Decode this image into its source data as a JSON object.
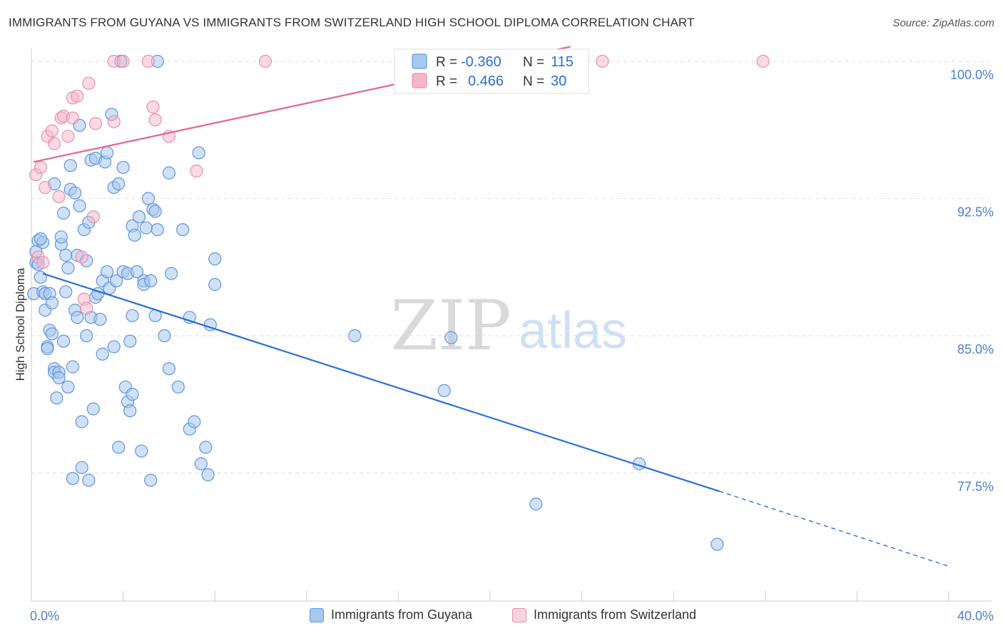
{
  "title": "IMMIGRANTS FROM GUYANA VS IMMIGRANTS FROM SWITZERLAND HIGH SCHOOL DIPLOMA CORRELATION CHART",
  "source": "Source: ZipAtlas.com",
  "watermark": {
    "zip": "ZIP",
    "atlas": "atlas"
  },
  "colors": {
    "guyana_fill": "#a9c8ef",
    "guyana_stroke": "#5f95db",
    "guyana_line": "#2c6fd6",
    "swiss_fill": "#f6b6c9",
    "swiss_stroke": "#ea8fac",
    "swiss_line": "#e4648c",
    "axis_text": "#4a7fd0",
    "grid": "#dddddd"
  },
  "legend_top": [
    {
      "r_label": "R =",
      "r_value": "-0.360",
      "n_label": "N =",
      "n_value": "115"
    },
    {
      "r_label": "R =",
      "r_value": "0.466",
      "n_label": "N =",
      "n_value": "30"
    }
  ],
  "legend_bottom": [
    "Immigrants from Guyana",
    "Immigrants from Switzerland"
  ],
  "chart_data": {
    "type": "scatter",
    "xlabel": "",
    "ylabel": "High School Diploma",
    "xlim": [
      0,
      40
    ],
    "ylim": [
      70.5,
      100.7
    ],
    "x_tick_labels": [
      {
        "value": 0,
        "label": "0.0%"
      },
      {
        "value": 40,
        "label": "40.0%"
      }
    ],
    "y_tick_labels": [
      {
        "value": 100,
        "label": "100.0%"
      },
      {
        "value": 92.5,
        "label": "92.5%"
      },
      {
        "value": 85,
        "label": "85.0%"
      },
      {
        "value": 77.5,
        "label": "77.5%"
      }
    ],
    "grid": "horizontal dashed",
    "series": [
      {
        "name": "Immigrants from Guyana",
        "regression": {
          "x0": 0.5,
          "y0": 88.4,
          "x1": 30.0,
          "y1": 76.5,
          "x_dash_end": 40.0,
          "y_dash_end": 72.4
        },
        "points": [
          [
            0.1,
            87.3
          ],
          [
            0.2,
            89.0
          ],
          [
            0.2,
            89.6
          ],
          [
            0.3,
            90.2
          ],
          [
            0.3,
            88.9
          ],
          [
            0.4,
            88.2
          ],
          [
            0.5,
            90.1
          ],
          [
            0.5,
            87.4
          ],
          [
            0.6,
            86.4
          ],
          [
            0.6,
            87.3
          ],
          [
            0.7,
            84.4
          ],
          [
            0.7,
            84.3
          ],
          [
            0.8,
            85.3
          ],
          [
            0.8,
            87.3
          ],
          [
            0.9,
            85.1
          ],
          [
            0.9,
            86.8
          ],
          [
            1.0,
            83.2
          ],
          [
            1.0,
            83.0
          ],
          [
            1.1,
            81.6
          ],
          [
            1.2,
            83.0
          ],
          [
            1.2,
            82.7
          ],
          [
            1.3,
            90.0
          ],
          [
            1.3,
            90.4
          ],
          [
            1.4,
            91.7
          ],
          [
            1.4,
            84.7
          ],
          [
            1.5,
            89.4
          ],
          [
            1.5,
            87.4
          ],
          [
            1.6,
            82.2
          ],
          [
            1.6,
            88.7
          ],
          [
            1.7,
            93.0
          ],
          [
            1.7,
            94.3
          ],
          [
            1.8,
            83.3
          ],
          [
            1.8,
            77.2
          ],
          [
            1.9,
            92.8
          ],
          [
            1.9,
            86.4
          ],
          [
            2.0,
            89.4
          ],
          [
            2.0,
            86.0
          ],
          [
            2.1,
            92.1
          ],
          [
            2.1,
            96.5
          ],
          [
            2.2,
            77.8
          ],
          [
            2.2,
            80.3
          ],
          [
            2.3,
            90.8
          ],
          [
            2.4,
            85.0
          ],
          [
            2.4,
            89.1
          ],
          [
            2.5,
            91.2
          ],
          [
            2.5,
            77.1
          ],
          [
            2.6,
            94.6
          ],
          [
            2.6,
            86.0
          ],
          [
            2.7,
            81.0
          ],
          [
            2.8,
            94.7
          ],
          [
            2.8,
            87.1
          ],
          [
            2.9,
            87.3
          ],
          [
            3.0,
            85.9
          ],
          [
            3.1,
            84.0
          ],
          [
            3.1,
            88.0
          ],
          [
            3.2,
            94.5
          ],
          [
            3.3,
            95.0
          ],
          [
            3.3,
            88.5
          ],
          [
            3.4,
            87.6
          ],
          [
            3.5,
            97.1
          ],
          [
            3.6,
            93.1
          ],
          [
            3.6,
            84.4
          ],
          [
            3.7,
            88.0
          ],
          [
            3.8,
            78.9
          ],
          [
            3.8,
            93.3
          ],
          [
            3.9,
            100.0
          ],
          [
            4.0,
            94.2
          ],
          [
            4.0,
            88.5
          ],
          [
            4.1,
            82.2
          ],
          [
            4.2,
            81.4
          ],
          [
            4.2,
            88.4
          ],
          [
            4.3,
            80.9
          ],
          [
            4.3,
            84.7
          ],
          [
            4.4,
            86.1
          ],
          [
            4.4,
            91.0
          ],
          [
            4.4,
            81.8
          ],
          [
            4.5,
            90.5
          ],
          [
            4.6,
            88.5
          ],
          [
            4.7,
            91.5
          ],
          [
            4.8,
            78.7
          ],
          [
            4.9,
            88.0
          ],
          [
            4.9,
            87.8
          ],
          [
            5.0,
            90.9
          ],
          [
            5.1,
            92.5
          ],
          [
            5.2,
            88.0
          ],
          [
            5.2,
            77.1
          ],
          [
            5.3,
            91.9
          ],
          [
            5.4,
            91.8
          ],
          [
            5.4,
            86.1
          ],
          [
            5.5,
            90.8
          ],
          [
            5.5,
            100.0
          ],
          [
            5.8,
            85.0
          ],
          [
            6.0,
            93.9
          ],
          [
            6.0,
            83.2
          ],
          [
            6.1,
            88.4
          ],
          [
            6.4,
            82.2
          ],
          [
            6.6,
            90.8
          ],
          [
            6.9,
            86.0
          ],
          [
            6.9,
            79.9
          ],
          [
            7.1,
            80.3
          ],
          [
            7.3,
            95.0
          ],
          [
            7.4,
            78.0
          ],
          [
            7.6,
            78.9
          ],
          [
            7.7,
            77.4
          ],
          [
            7.8,
            85.6
          ],
          [
            8.0,
            89.2
          ],
          [
            8.0,
            87.8
          ],
          [
            14.1,
            85.0
          ],
          [
            18.0,
            82.0
          ],
          [
            18.3,
            84.9
          ],
          [
            22.0,
            75.8
          ],
          [
            26.5,
            78.0
          ],
          [
            29.9,
            73.6
          ],
          [
            1.0,
            93.3
          ],
          [
            0.4,
            90.3
          ]
        ]
      },
      {
        "name": "Immigrants from Switzerland",
        "regression": {
          "x0": 0.1,
          "y0": 94.5,
          "x1": 23.5,
          "y1": 100.8
        },
        "points": [
          [
            0.2,
            93.8
          ],
          [
            0.3,
            89.3
          ],
          [
            0.4,
            94.2
          ],
          [
            0.5,
            89.0
          ],
          [
            0.6,
            93.1
          ],
          [
            0.7,
            95.9
          ],
          [
            0.9,
            96.2
          ],
          [
            1.0,
            95.5
          ],
          [
            1.2,
            92.6
          ],
          [
            1.3,
            96.9
          ],
          [
            1.4,
            97.0
          ],
          [
            1.6,
            95.9
          ],
          [
            1.8,
            96.9
          ],
          [
            1.8,
            98.0
          ],
          [
            2.0,
            98.1
          ],
          [
            2.2,
            89.3
          ],
          [
            2.3,
            87.0
          ],
          [
            2.4,
            86.5
          ],
          [
            2.5,
            98.8
          ],
          [
            2.7,
            91.5
          ],
          [
            2.8,
            96.6
          ],
          [
            3.6,
            96.7
          ],
          [
            3.6,
            100.0
          ],
          [
            4.0,
            100.0
          ],
          [
            5.1,
            100.0
          ],
          [
            5.3,
            97.5
          ],
          [
            5.4,
            96.8
          ],
          [
            6.0,
            95.9
          ],
          [
            7.2,
            94.0
          ],
          [
            10.2,
            100.0
          ]
        ]
      },
      {
        "name": "Immigrants from Switzerland (top row)",
        "points": [
          [
            24.9,
            100.0
          ],
          [
            31.9,
            100.0
          ]
        ]
      }
    ]
  }
}
